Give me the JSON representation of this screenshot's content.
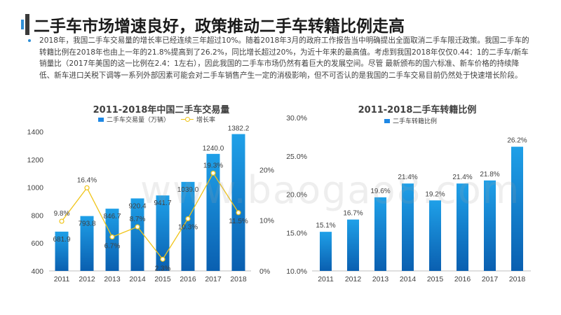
{
  "page": {
    "title": "二手车市场增速良好，政策推动二手车转籍比例走高",
    "paragraph": "2018年，我国二手车交易量的增长率已经连续三年超过10%。随着2018年3月的政府工作报告当中明确提出全面取消二手车限迁政策。我国二手车的转籍比例在2018年也由上一年的21.8%提高到了26.2%，同比增长超过20%，为近十年来的最高值。考虑到我国2018年仅仅0.44：1的二手车/新车销量比（2017年美国的这一比例在2.4：1左右），因此我国的二手车市场仍然有着巨大的发展空间。尽管 最新颁布的国六标准、新车价格的持续降低、新车进口关税下调等一系列外部因素可能会对二手车销售产生一定的消极影响，但不可否认的是我国的二手车交易目前仍然处于快速增长阶段。",
    "watermark": "www.baogao8.com"
  },
  "colors": {
    "bar_top": "#1fa0e8",
    "bar_bottom": "#0a5fb0",
    "line": "#f0c419",
    "accent": "#2f8fd6"
  },
  "chart_data": [
    {
      "type": "bar",
      "title": "2011-2018年中国二手车交易量",
      "categories": [
        "2011",
        "2012",
        "2013",
        "2014",
        "2015",
        "2016",
        "2017",
        "2018"
      ],
      "series": [
        {
          "name": "二手车交易量（万辆）",
          "type": "bar",
          "axis": "left",
          "values": [
            681.9,
            793.8,
            846.7,
            920.4,
            941.7,
            1039.0,
            1240.0,
            1382.2
          ],
          "labels": [
            "681.9",
            "793.8",
            "846.7",
            "920.4",
            "941.7",
            "1039.0",
            "1240.0",
            "1382.2"
          ]
        },
        {
          "name": "增长率",
          "type": "line",
          "axis": "right",
          "values": [
            9.8,
            16.4,
            6.7,
            8.7,
            2.3,
            10.3,
            19.3,
            11.5
          ],
          "labels": [
            "9.8%",
            "16.4%",
            "6.7%",
            "8.7%",
            "2.3%",
            "10.3%",
            "19.3%",
            "11.5%"
          ]
        }
      ],
      "y_left": {
        "min": 400,
        "max": 1400,
        "ticks": [
          "400",
          "600",
          "800",
          "1000",
          "1200",
          "1400"
        ]
      },
      "y_right": {
        "min": 0,
        "max": 27.5,
        "ticks": [
          "0%",
          "10%",
          "20%"
        ]
      },
      "grid": false,
      "legend": "top"
    },
    {
      "type": "bar",
      "title": "2011-2018二手车转籍比例",
      "categories": [
        "2011",
        "2012",
        "2013",
        "2014",
        "2015",
        "2016",
        "2017",
        "2018"
      ],
      "series": [
        {
          "name": "二手车转籍比例",
          "values": [
            15.1,
            16.7,
            19.6,
            21.4,
            19.2,
            21.4,
            21.8,
            26.2
          ],
          "labels": [
            "15.1%",
            "16.7%",
            "19.6%",
            "21.4%",
            "19.2%",
            "21.4%",
            "21.8%",
            "26.2%"
          ]
        }
      ],
      "y": {
        "min": 10,
        "max": 30,
        "ticks": [
          "10.0%",
          "15.0%",
          "20.0%",
          "25.0%",
          "30.0%"
        ]
      },
      "grid": false,
      "legend": "top-left"
    }
  ]
}
